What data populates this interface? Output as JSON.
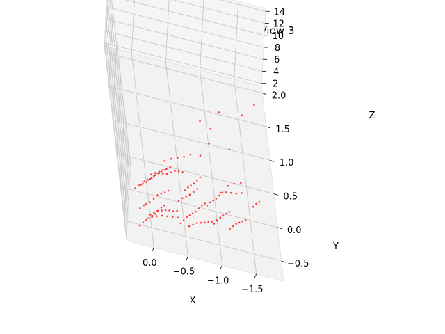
{
  "chart_data": {
    "type": "scatter",
    "title": "3D Reconstruction View 3",
    "xlabel": "X",
    "ylabel": "Y",
    "zlabel": "Z",
    "x_ticks": [
      "0.0",
      "−0.5",
      "−1.0",
      "−1.5"
    ],
    "y_ticks": [
      "−0.5",
      "0.0",
      "0.5",
      "1.0",
      "1.5",
      "2.0"
    ],
    "z_ticks": [
      "2",
      "4",
      "6",
      "8",
      "10",
      "12",
      "14"
    ],
    "xlim": [
      0.4,
      -1.9
    ],
    "ylim": [
      -0.8,
      2.1
    ],
    "zlim": [
      1.5,
      14.5
    ],
    "grid": true,
    "marker_color": "#ff0000",
    "points": [
      {
        "x": 0.2,
        "y": -0.7,
        "z": 3.5
      },
      {
        "x": 0.15,
        "y": -0.65,
        "z": 3.6
      },
      {
        "x": 0.1,
        "y": -0.6,
        "z": 3.55
      },
      {
        "x": 0.05,
        "y": -0.55,
        "z": 3.5
      },
      {
        "x": 0.0,
        "y": -0.5,
        "z": 3.45
      },
      {
        "x": -0.05,
        "y": -0.45,
        "z": 3.4
      },
      {
        "x": -0.1,
        "y": -0.4,
        "z": 3.5
      },
      {
        "x": -0.15,
        "y": -0.35,
        "z": 3.6
      },
      {
        "x": -0.2,
        "y": -0.3,
        "z": 3.55
      },
      {
        "x": 0.18,
        "y": -0.5,
        "z": 4.2
      },
      {
        "x": 0.12,
        "y": -0.45,
        "z": 4.3
      },
      {
        "x": 0.08,
        "y": -0.4,
        "z": 4.1
      },
      {
        "x": 0.02,
        "y": -0.35,
        "z": 4.0
      },
      {
        "x": -0.04,
        "y": -0.3,
        "z": 4.2
      },
      {
        "x": -0.1,
        "y": -0.25,
        "z": 4.4
      },
      {
        "x": -0.16,
        "y": -0.2,
        "z": 4.3
      },
      {
        "x": -0.22,
        "y": -0.15,
        "z": 4.1
      },
      {
        "x": -0.28,
        "y": -0.1,
        "z": 4.0
      },
      {
        "x": 0.1,
        "y": -0.7,
        "z": 5.0
      },
      {
        "x": 0.05,
        "y": -0.65,
        "z": 5.2
      },
      {
        "x": 0.0,
        "y": -0.62,
        "z": 5.4
      },
      {
        "x": -0.05,
        "y": -0.6,
        "z": 5.5
      },
      {
        "x": -0.12,
        "y": -0.58,
        "z": 5.6
      },
      {
        "x": -0.18,
        "y": -0.55,
        "z": 5.5
      },
      {
        "x": -0.24,
        "y": -0.52,
        "z": 5.3
      },
      {
        "x": -0.3,
        "y": -0.5,
        "z": 5.1
      },
      {
        "x": -0.36,
        "y": -0.47,
        "z": 5.0
      },
      {
        "x": 0.15,
        "y": -0.3,
        "z": 6.0
      },
      {
        "x": 0.1,
        "y": -0.25,
        "z": 6.1
      },
      {
        "x": 0.04,
        "y": -0.2,
        "z": 6.0
      },
      {
        "x": -0.02,
        "y": -0.15,
        "z": 5.9
      },
      {
        "x": -0.08,
        "y": -0.1,
        "z": 6.0
      },
      {
        "x": -0.14,
        "y": -0.05,
        "z": 6.2
      },
      {
        "x": -0.2,
        "y": 0.0,
        "z": 6.1
      },
      {
        "x": -0.26,
        "y": 0.05,
        "z": 5.9
      },
      {
        "x": -0.32,
        "y": 0.1,
        "z": 5.8
      },
      {
        "x": 0.05,
        "y": -0.8,
        "z": 6.5
      },
      {
        "x": -0.02,
        "y": -0.78,
        "z": 6.6
      },
      {
        "x": -0.1,
        "y": -0.76,
        "z": 6.7
      },
      {
        "x": -0.18,
        "y": -0.74,
        "z": 6.6
      },
      {
        "x": -0.26,
        "y": -0.72,
        "z": 6.5
      },
      {
        "x": -0.34,
        "y": -0.7,
        "z": 6.4
      },
      {
        "x": 0.2,
        "y": -0.1,
        "z": 3.0
      },
      {
        "x": 0.14,
        "y": -0.05,
        "z": 3.1
      },
      {
        "x": 0.08,
        "y": 0.0,
        "z": 3.0
      },
      {
        "x": 0.02,
        "y": 0.05,
        "z": 2.9
      },
      {
        "x": -0.04,
        "y": 0.1,
        "z": 3.0
      },
      {
        "x": -0.1,
        "y": 0.15,
        "z": 3.1
      },
      {
        "x": -0.16,
        "y": 0.2,
        "z": 3.2
      },
      {
        "x": -0.22,
        "y": 0.25,
        "z": 3.1
      },
      {
        "x": -0.28,
        "y": 0.3,
        "z": 3.0
      },
      {
        "x": 0.0,
        "y": -0.2,
        "z": 7.0
      },
      {
        "x": -0.06,
        "y": -0.18,
        "z": 7.2
      },
      {
        "x": -0.12,
        "y": -0.16,
        "z": 7.1
      },
      {
        "x": -0.18,
        "y": -0.14,
        "z": 7.0
      },
      {
        "x": -0.24,
        "y": -0.12,
        "z": 6.9
      },
      {
        "x": -0.3,
        "y": -0.1,
        "z": 7.1
      },
      {
        "x": -0.36,
        "y": -0.08,
        "z": 7.3
      },
      {
        "x": -0.42,
        "y": -0.06,
        "z": 7.2
      },
      {
        "x": -0.48,
        "y": -0.04,
        "z": 7.0
      },
      {
        "x": -0.4,
        "y": -0.6,
        "z": 4.5
      },
      {
        "x": -0.45,
        "y": -0.55,
        "z": 4.6
      },
      {
        "x": -0.5,
        "y": -0.5,
        "z": 4.7
      },
      {
        "x": -0.55,
        "y": -0.45,
        "z": 4.6
      },
      {
        "x": -0.6,
        "y": -0.4,
        "z": 4.5
      },
      {
        "x": -0.65,
        "y": -0.35,
        "z": 4.4
      },
      {
        "x": -0.7,
        "y": -0.3,
        "z": 4.5
      },
      {
        "x": -0.75,
        "y": -0.25,
        "z": 4.6
      },
      {
        "x": -0.8,
        "y": -0.2,
        "z": 4.5
      },
      {
        "x": -0.42,
        "y": -0.2,
        "z": 3.8
      },
      {
        "x": -0.48,
        "y": -0.15,
        "z": 3.9
      },
      {
        "x": -0.54,
        "y": -0.1,
        "z": 3.8
      },
      {
        "x": -0.6,
        "y": -0.05,
        "z": 3.7
      },
      {
        "x": -0.66,
        "y": 0.0,
        "z": 3.8
      },
      {
        "x": -0.72,
        "y": 0.05,
        "z": 3.9
      },
      {
        "x": -0.5,
        "y": -0.75,
        "z": 6.0
      },
      {
        "x": -0.56,
        "y": -0.72,
        "z": 6.1
      },
      {
        "x": -0.62,
        "y": -0.69,
        "z": 6.2
      },
      {
        "x": -0.68,
        "y": -0.66,
        "z": 6.1
      },
      {
        "x": -0.74,
        "y": -0.63,
        "z": 6.0
      },
      {
        "x": -0.8,
        "y": -0.6,
        "z": 5.9
      },
      {
        "x": -0.86,
        "y": -0.57,
        "z": 5.8
      },
      {
        "x": -0.92,
        "y": -0.54,
        "z": 5.9
      },
      {
        "x": -0.98,
        "y": -0.51,
        "z": 6.0
      },
      {
        "x": -0.55,
        "y": 0.1,
        "z": 2.6
      },
      {
        "x": -0.6,
        "y": 0.15,
        "z": 2.7
      },
      {
        "x": -0.65,
        "y": 0.2,
        "z": 2.6
      },
      {
        "x": -0.7,
        "y": 0.25,
        "z": 2.5
      },
      {
        "x": -0.75,
        "y": 0.3,
        "z": 2.6
      },
      {
        "x": -0.8,
        "y": 0.35,
        "z": 2.7
      },
      {
        "x": -0.85,
        "y": -0.1,
        "z": 3.2
      },
      {
        "x": -0.9,
        "y": -0.05,
        "z": 3.3
      },
      {
        "x": -0.95,
        "y": 0.0,
        "z": 3.2
      },
      {
        "x": -1.0,
        "y": 0.05,
        "z": 3.1
      },
      {
        "x": -1.05,
        "y": 0.1,
        "z": 3.2
      },
      {
        "x": -1.1,
        "y": 0.15,
        "z": 3.3
      },
      {
        "x": -0.9,
        "y": -0.5,
        "z": 4.8
      },
      {
        "x": -0.95,
        "y": -0.45,
        "z": 4.9
      },
      {
        "x": -1.0,
        "y": -0.4,
        "z": 5.0
      },
      {
        "x": -1.05,
        "y": -0.35,
        "z": 4.9
      },
      {
        "x": -1.1,
        "y": -0.3,
        "z": 4.8
      },
      {
        "x": -1.15,
        "y": -0.25,
        "z": 4.7
      },
      {
        "x": -1.1,
        "y": -0.7,
        "z": 6.8
      },
      {
        "x": -1.15,
        "y": -0.66,
        "z": 6.9
      },
      {
        "x": -1.2,
        "y": -0.62,
        "z": 7.0
      },
      {
        "x": -1.25,
        "y": -0.58,
        "z": 6.9
      },
      {
        "x": -1.3,
        "y": -0.54,
        "z": 6.8
      },
      {
        "x": -1.35,
        "y": -0.5,
        "z": 6.7
      },
      {
        "x": -1.0,
        "y": -0.3,
        "z": 8.0
      },
      {
        "x": -1.08,
        "y": -0.28,
        "z": 8.1
      },
      {
        "x": -1.16,
        "y": -0.26,
        "z": 8.0
      },
      {
        "x": -1.24,
        "y": -0.24,
        "z": 7.9
      },
      {
        "x": -1.32,
        "y": -0.22,
        "z": 8.0
      },
      {
        "x": -0.3,
        "y": 0.5,
        "z": 2.3
      },
      {
        "x": -0.4,
        "y": 0.55,
        "z": 2.4
      },
      {
        "x": -0.5,
        "y": 0.6,
        "z": 2.3
      },
      {
        "x": -0.6,
        "y": 0.65,
        "z": 2.2
      },
      {
        "x": -0.7,
        "y": 0.7,
        "z": 2.3
      },
      {
        "x": -1.2,
        "y": 0.3,
        "z": 3.0
      },
      {
        "x": -1.3,
        "y": 0.35,
        "z": 3.1
      },
      {
        "x": -1.4,
        "y": 0.4,
        "z": 3.0
      },
      {
        "x": -1.5,
        "y": -0.2,
        "z": 6.0
      },
      {
        "x": -1.55,
        "y": -0.15,
        "z": 6.1
      },
      {
        "x": -1.6,
        "y": -0.1,
        "z": 6.0
      },
      {
        "x": -0.85,
        "y": 0.75,
        "z": 2.0
      },
      {
        "x": -1.0,
        "y": 0.95,
        "z": 2.2
      },
      {
        "x": -1.3,
        "y": 0.95,
        "z": 2.1
      },
      {
        "x": -1.55,
        "y": 1.55,
        "z": 1.8
      },
      {
        "x": -1.75,
        "y": 1.75,
        "z": 1.9
      },
      {
        "x": -1.05,
        "y": 1.2,
        "z": 2.0
      },
      {
        "x": -0.9,
        "y": 1.25,
        "z": 2.3
      },
      {
        "x": -1.2,
        "y": 1.45,
        "z": 2.4
      }
    ]
  }
}
